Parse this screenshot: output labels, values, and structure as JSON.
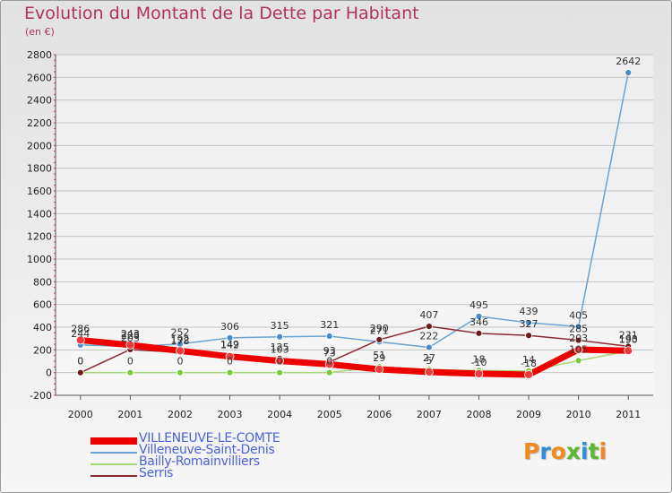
{
  "header": {
    "title": "Evolution du Montant de la Dette par Habitant",
    "subtitle": "(en €)"
  },
  "logo": {
    "text": "Proxiti",
    "letter_colors": [
      "#f08a1c",
      "#2e8fd8",
      "#f08a1c",
      "#5cb82e",
      "#2e8fd8",
      "#5cb82e",
      "#f08a1c"
    ]
  },
  "chart_data": {
    "type": "line",
    "title": "Evolution du Montant de la Dette par Habitant",
    "ylabel": "(en €)",
    "xlabel": "",
    "x": [
      "2000",
      "2001",
      "2002",
      "2003",
      "2004",
      "2005",
      "2006",
      "2007",
      "2008",
      "2009",
      "2010",
      "2011"
    ],
    "ylim": [
      -200,
      2800
    ],
    "yticks": [
      -200,
      0,
      200,
      400,
      600,
      800,
      1000,
      1200,
      1400,
      1600,
      1800,
      2000,
      2200,
      2400,
      2600,
      2800
    ],
    "grid": "horizontal",
    "legend": "bottom-left",
    "series": [
      {
        "name": "VILLENEUVE-LE-COMTE",
        "color": "#ee0000",
        "marker": "#ee3a3a",
        "width": 7,
        "values": [
          286,
          243,
          192,
          142,
          103,
          73,
          29,
          5,
          -10,
          -18,
          203,
          193
        ],
        "labels": [
          "286",
          "243",
          "192",
          "142",
          "103",
          "73",
          "29",
          "5",
          "-10",
          "-18",
          "203",
          "193"
        ]
      },
      {
        "name": "Villeneuve-Saint-Denis",
        "color": "#6aa3d4",
        "marker": "#4a8ac8",
        "width": 1.5,
        "values": [
          244,
          228,
          252,
          306,
          315,
          321,
          271,
          222,
          495,
          439,
          405,
          2642
        ],
        "labels": [
          "244",
          "228",
          "252",
          "306",
          "315",
          "321",
          "271",
          "222",
          "495",
          "439",
          "405",
          "2642"
        ]
      },
      {
        "name": "Bailly-Romainvilliers",
        "color": "#a4d878",
        "marker": "#7cc83c",
        "width": 1.5,
        "values": [
          0,
          0,
          0,
          0,
          0,
          0,
          51,
          27,
          18,
          14,
          105,
          190
        ],
        "labels": [
          "0",
          "0",
          "0",
          "0",
          "0",
          "0",
          "51",
          "27",
          "18",
          "14",
          "105",
          "190"
        ]
      },
      {
        "name": "Serris",
        "color": "#8a2a34",
        "marker": "#6a1c1c",
        "width": 1.5,
        "values": [
          0,
          203,
          178,
          149,
          125,
          93,
          290,
          407,
          346,
          327,
          285,
          231
        ],
        "labels": [
          "0",
          "203",
          "178",
          "149",
          "125",
          "93",
          "290",
          "407",
          "346",
          "327",
          "285",
          "231"
        ]
      }
    ]
  }
}
